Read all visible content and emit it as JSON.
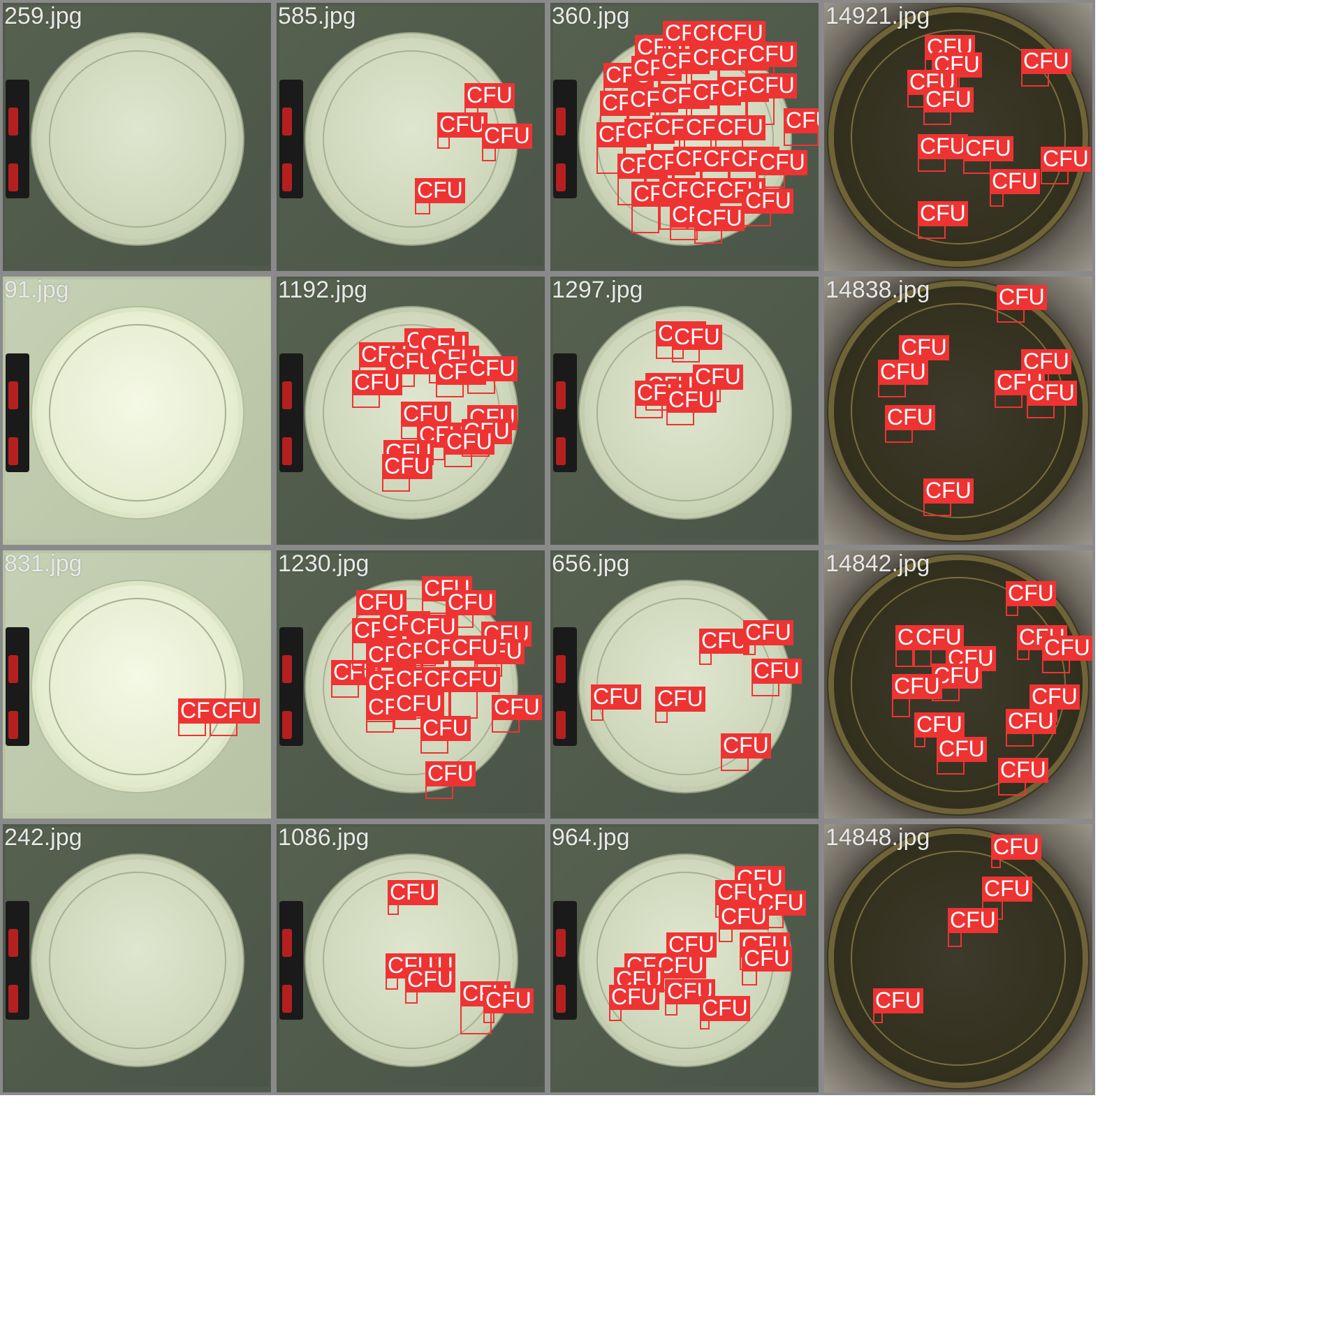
{
  "detection_label": "CFU",
  "colors": {
    "box": "#ee3333",
    "label_text": "#ffffff",
    "tile_border": "#8a8a8a",
    "filename_text": "#e8e8e8"
  },
  "tiles": [
    {
      "filename": "259.jpg",
      "bg": "green",
      "boxes": []
    },
    {
      "filename": "585.jpg",
      "bg": "green",
      "boxes": [
        [
          661,
          149,
          20,
          18
        ],
        [
          622,
          191,
          18,
          18
        ],
        [
          686,
          207,
          20,
          20
        ],
        [
          590,
          285,
          22,
          18
        ]
      ]
    },
    {
      "filename": "360.jpg",
      "bg": "green",
      "boxes": [
        [
          905,
          80,
          40,
          30
        ],
        [
          945,
          60,
          40,
          30
        ],
        [
          985,
          60,
          40,
          30
        ],
        [
          1020,
          60,
          40,
          30
        ],
        [
          860,
          120,
          40,
          40
        ],
        [
          900,
          110,
          40,
          40
        ],
        [
          940,
          100,
          40,
          40
        ],
        [
          985,
          95,
          40,
          40
        ],
        [
          1025,
          95,
          40,
          40
        ],
        [
          1065,
          90,
          40,
          40
        ],
        [
          855,
          160,
          40,
          40
        ],
        [
          895,
          155,
          40,
          40
        ],
        [
          940,
          150,
          40,
          40
        ],
        [
          985,
          145,
          40,
          40
        ],
        [
          1025,
          140,
          40,
          40
        ],
        [
          1065,
          135,
          40,
          40
        ],
        [
          850,
          205,
          40,
          40
        ],
        [
          890,
          200,
          40,
          40
        ],
        [
          930,
          195,
          40,
          40
        ],
        [
          975,
          195,
          40,
          40
        ],
        [
          1020,
          195,
          40,
          40
        ],
        [
          1118,
          185,
          50,
          20
        ],
        [
          880,
          250,
          40,
          40
        ],
        [
          920,
          245,
          40,
          40
        ],
        [
          960,
          240,
          40,
          40
        ],
        [
          1000,
          240,
          40,
          40
        ],
        [
          1040,
          240,
          40,
          40
        ],
        [
          1080,
          245,
          40,
          20
        ],
        [
          900,
          290,
          40,
          40
        ],
        [
          940,
          285,
          40,
          40
        ],
        [
          980,
          285,
          40,
          40
        ],
        [
          1020,
          285,
          40,
          40
        ],
        [
          1060,
          300,
          40,
          20
        ],
        [
          955,
          320,
          40,
          20
        ],
        [
          990,
          325,
          40,
          20
        ]
      ]
    },
    {
      "filename": "14921.jpg",
      "bg": "dark",
      "boxes": [
        [
          1320,
          80,
          40,
          20
        ],
        [
          1330,
          105,
          40,
          20
        ],
        [
          1295,
          130,
          40,
          20
        ],
        [
          1318,
          155,
          40,
          20
        ],
        [
          1458,
          100,
          40,
          20
        ],
        [
          1310,
          222,
          40,
          20
        ],
        [
          1375,
          225,
          40,
          20
        ],
        [
          1486,
          240,
          40,
          20
        ],
        [
          1413,
          272,
          20,
          20
        ],
        [
          1310,
          318,
          40,
          20
        ]
      ]
    },
    {
      "filename": "91.jpg",
      "bg": "bright",
      "boxes": []
    },
    {
      "filename": "1192.jpg",
      "bg": "green",
      "boxes": [
        [
          575,
          500,
          40,
          20
        ],
        [
          595,
          505,
          40,
          20
        ],
        [
          510,
          520,
          40,
          20
        ],
        [
          550,
          530,
          40,
          20
        ],
        [
          610,
          525,
          40,
          20
        ],
        [
          620,
          545,
          40,
          20
        ],
        [
          665,
          540,
          40,
          20
        ],
        [
          500,
          560,
          40,
          20
        ],
        [
          570,
          605,
          40,
          20
        ],
        [
          665,
          610,
          40,
          20
        ],
        [
          593,
          635,
          40,
          20
        ],
        [
          657,
          630,
          40,
          20
        ],
        [
          632,
          645,
          40,
          20
        ],
        [
          545,
          660,
          40,
          20
        ],
        [
          543,
          680,
          40,
          20
        ]
      ]
    },
    {
      "filename": "1297.jpg",
      "bg": "green",
      "boxes": [
        [
          935,
          490,
          40,
          20
        ],
        [
          958,
          495,
          40,
          20
        ],
        [
          988,
          552,
          40,
          20
        ],
        [
          920,
          564,
          40,
          20
        ],
        [
          905,
          575,
          40,
          20
        ],
        [
          950,
          585,
          40,
          20
        ]
      ]
    },
    {
      "filename": "14838.jpg",
      "bg": "dark",
      "boxes": [
        [
          1423,
          438,
          40,
          20
        ],
        [
          1283,
          510,
          40,
          20
        ],
        [
          1253,
          545,
          40,
          20
        ],
        [
          1458,
          530,
          40,
          20
        ],
        [
          1420,
          560,
          40,
          20
        ],
        [
          1466,
          575,
          40,
          20
        ],
        [
          1263,
          610,
          40,
          20
        ],
        [
          1318,
          715,
          40,
          20
        ]
      ]
    },
    {
      "filename": "831.jpg",
      "bg": "bright",
      "boxes": [
        [
          251,
          1030,
          40,
          20
        ],
        [
          296,
          1030,
          40,
          20
        ]
      ]
    },
    {
      "filename": "1230.jpg",
      "bg": "green",
      "boxes": [
        [
          506,
          875,
          40,
          20
        ],
        [
          600,
          855,
          40,
          20
        ],
        [
          634,
          875,
          40,
          20
        ],
        [
          685,
          920,
          40,
          20
        ],
        [
          675,
          945,
          40,
          20
        ],
        [
          470,
          975,
          40,
          20
        ],
        [
          500,
          915,
          40,
          40
        ],
        [
          540,
          905,
          40,
          40
        ],
        [
          580,
          910,
          40,
          40
        ],
        [
          520,
          950,
          40,
          40
        ],
        [
          560,
          945,
          40,
          40
        ],
        [
          600,
          940,
          40,
          40
        ],
        [
          640,
          940,
          40,
          40
        ],
        [
          520,
          990,
          40,
          40
        ],
        [
          560,
          985,
          40,
          40
        ],
        [
          600,
          985,
          40,
          40
        ],
        [
          640,
          985,
          40,
          40
        ],
        [
          520,
          1025,
          40,
          20
        ],
        [
          560,
          1020,
          40,
          20
        ],
        [
          700,
          1025,
          40,
          20
        ],
        [
          598,
          1055,
          40,
          20
        ],
        [
          605,
          1120,
          40,
          20
        ]
      ]
    },
    {
      "filename": "656.jpg",
      "bg": "green",
      "boxes": [
        [
          997,
          930,
          18,
          18
        ],
        [
          1060,
          918,
          18,
          16
        ],
        [
          1072,
          973,
          40,
          20
        ],
        [
          842,
          1010,
          18,
          18
        ],
        [
          934,
          1013,
          18,
          18
        ],
        [
          1028,
          1080,
          40,
          20
        ]
      ]
    },
    {
      "filename": "14842.jpg",
      "bg": "dark",
      "boxes": [
        [
          1436,
          862,
          18,
          16
        ],
        [
          1278,
          925,
          26,
          26
        ],
        [
          1304,
          925,
          26,
          26
        ],
        [
          1452,
          925,
          18,
          16
        ],
        [
          1488,
          940,
          40,
          20
        ],
        [
          1350,
          955,
          20,
          20
        ],
        [
          1330,
          980,
          40,
          20
        ],
        [
          1273,
          995,
          26,
          28
        ],
        [
          1470,
          1010,
          40,
          20
        ],
        [
          1305,
          1050,
          16,
          16
        ],
        [
          1436,
          1045,
          40,
          20
        ],
        [
          1337,
          1085,
          40,
          20
        ],
        [
          1425,
          1115,
          40,
          20
        ]
      ]
    },
    {
      "filename": "242.jpg",
      "bg": "green",
      "boxes": []
    },
    {
      "filename": "1086.jpg",
      "bg": "green",
      "boxes": [
        [
          551,
          1290,
          16,
          16
        ],
        [
          576,
          1395,
          20,
          18
        ],
        [
          548,
          1395,
          18,
          18
        ],
        [
          576,
          1415,
          18,
          18
        ],
        [
          655,
          1435,
          45,
          42
        ],
        [
          688,
          1445,
          16,
          16
        ]
      ]
    },
    {
      "filename": "964.jpg",
      "bg": "green",
      "boxes": [
        [
          1048,
          1270,
          40,
          20
        ],
        [
          1020,
          1290,
          40,
          20
        ],
        [
          1078,
          1305,
          40,
          20
        ],
        [
          1025,
          1325,
          20,
          20
        ],
        [
          950,
          1365,
          40,
          20
        ],
        [
          1055,
          1365,
          20,
          20
        ],
        [
          1058,
          1385,
          22,
          22
        ],
        [
          890,
          1395,
          40,
          20
        ],
        [
          935,
          1395,
          40,
          20
        ],
        [
          875,
          1415,
          40,
          20
        ],
        [
          868,
          1440,
          18,
          18
        ],
        [
          948,
          1432,
          18,
          18
        ],
        [
          998,
          1456,
          14,
          14
        ]
      ]
    },
    {
      "filename": "14848.jpg",
      "bg": "dark",
      "boxes": [
        [
          1415,
          1225,
          14,
          14
        ],
        [
          1402,
          1285,
          30,
          28
        ],
        [
          1353,
          1330,
          20,
          22
        ],
        [
          1246,
          1445,
          14,
          16
        ]
      ]
    }
  ]
}
